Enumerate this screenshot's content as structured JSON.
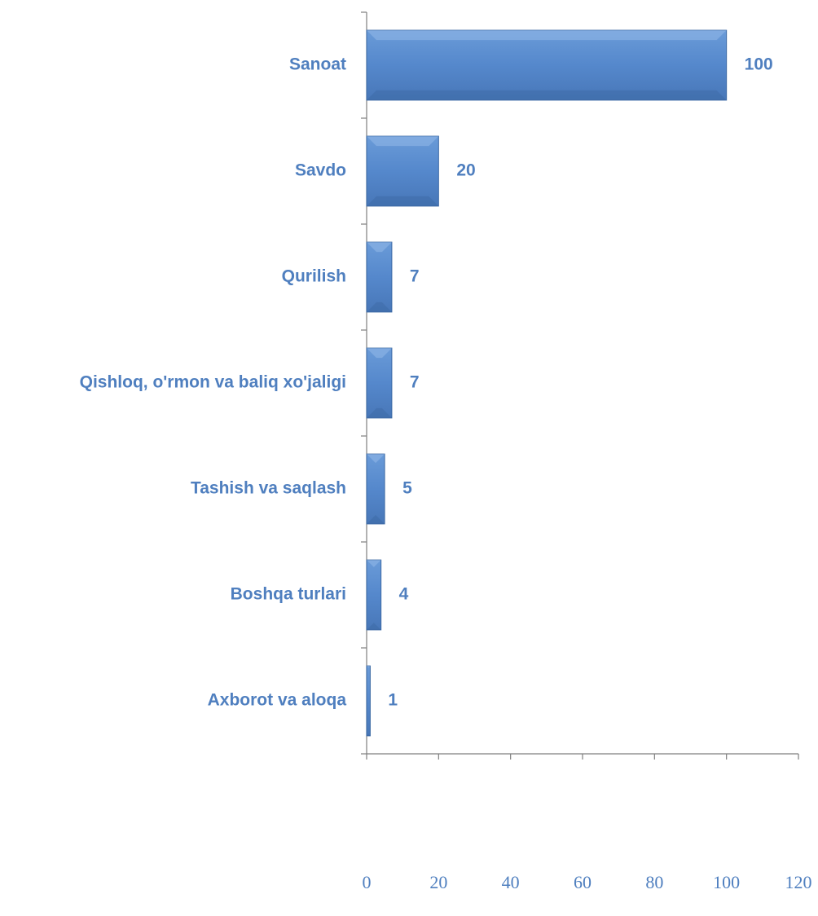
{
  "chart_data": {
    "type": "bar",
    "orientation": "horizontal",
    "categories": [
      "Sanoat",
      "Savdo",
      "Qurilish",
      "Qishloq, o'rmon va baliq xo'jaligi",
      "Tashish va saqlash",
      "Boshqa turlari",
      "Axborot va aloqa"
    ],
    "values": [
      100,
      20,
      7,
      7,
      5,
      4,
      1
    ],
    "color": "#4f81bd",
    "xlim": [
      0,
      120
    ],
    "xticks": [
      0,
      20,
      40,
      60,
      80,
      100,
      120
    ],
    "grid": false
  }
}
